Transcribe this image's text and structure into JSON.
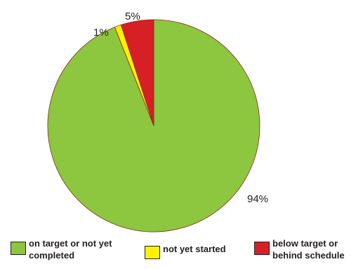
{
  "chart_data": {
    "type": "pie",
    "slices": [
      {
        "label": "on target or not yet completed",
        "value": 94,
        "display": "94%",
        "color": "#8dc63f"
      },
      {
        "label": "not yet started",
        "value": 1,
        "display": "1%",
        "color": "#fff200"
      },
      {
        "label": "below target or behind schedule",
        "value": 5,
        "display": "5%",
        "color": "#d71f26"
      }
    ],
    "legend": {
      "placement": "bottom",
      "items": [
        {
          "line1": "on target or not yet",
          "line2": "completed",
          "color": "#8dc63f"
        },
        {
          "line1": "not yet started",
          "line2": "",
          "color": "#fff200"
        },
        {
          "line1": "below target or",
          "line2": "behind schedule",
          "color": "#d71f26"
        }
      ]
    }
  }
}
